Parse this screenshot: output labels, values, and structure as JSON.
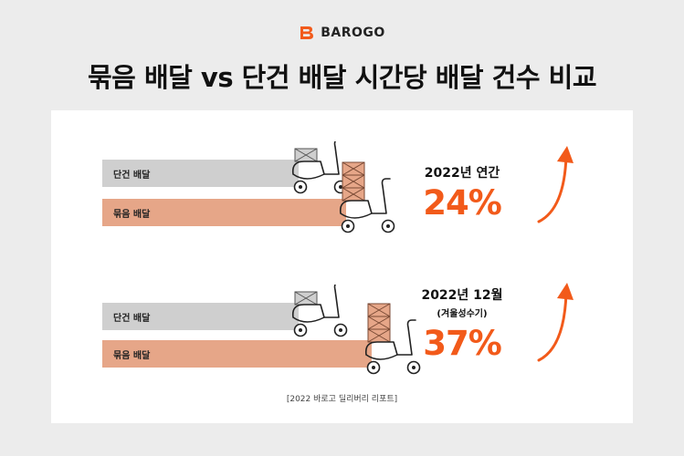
{
  "brand": {
    "name": "BAROGO",
    "accent": "#f25a1a"
  },
  "title": "묶음 배달 vs 단건 배달 시간당 배달 건수 비교",
  "colors": {
    "single": "#cfcfcf",
    "bundle": "#e6a688",
    "highlight": "#f25a1a"
  },
  "chart_data": {
    "type": "bar",
    "icons": [
      "scooter-icon",
      "delivery-box-icon",
      "up-arrow-icon"
    ],
    "panels": [
      {
        "categories": [
          "단건 배달",
          "묶음 배달"
        ],
        "values": [
          1.0,
          1.24
        ],
        "period": "2022년 연간",
        "note": "",
        "increase_label": "24%",
        "increase": 24,
        "single_boxes": 1,
        "bundle_boxes": 3
      },
      {
        "categories": [
          "단건 배달",
          "묶음 배달"
        ],
        "values": [
          1.0,
          1.37
        ],
        "period": "2022년 12월",
        "note": "(겨울성수기)",
        "increase_label": "37%",
        "increase": 37,
        "single_boxes": 1,
        "bundle_boxes": 3
      }
    ],
    "source": "[2022 바로고 딜리버리 리포트]"
  }
}
